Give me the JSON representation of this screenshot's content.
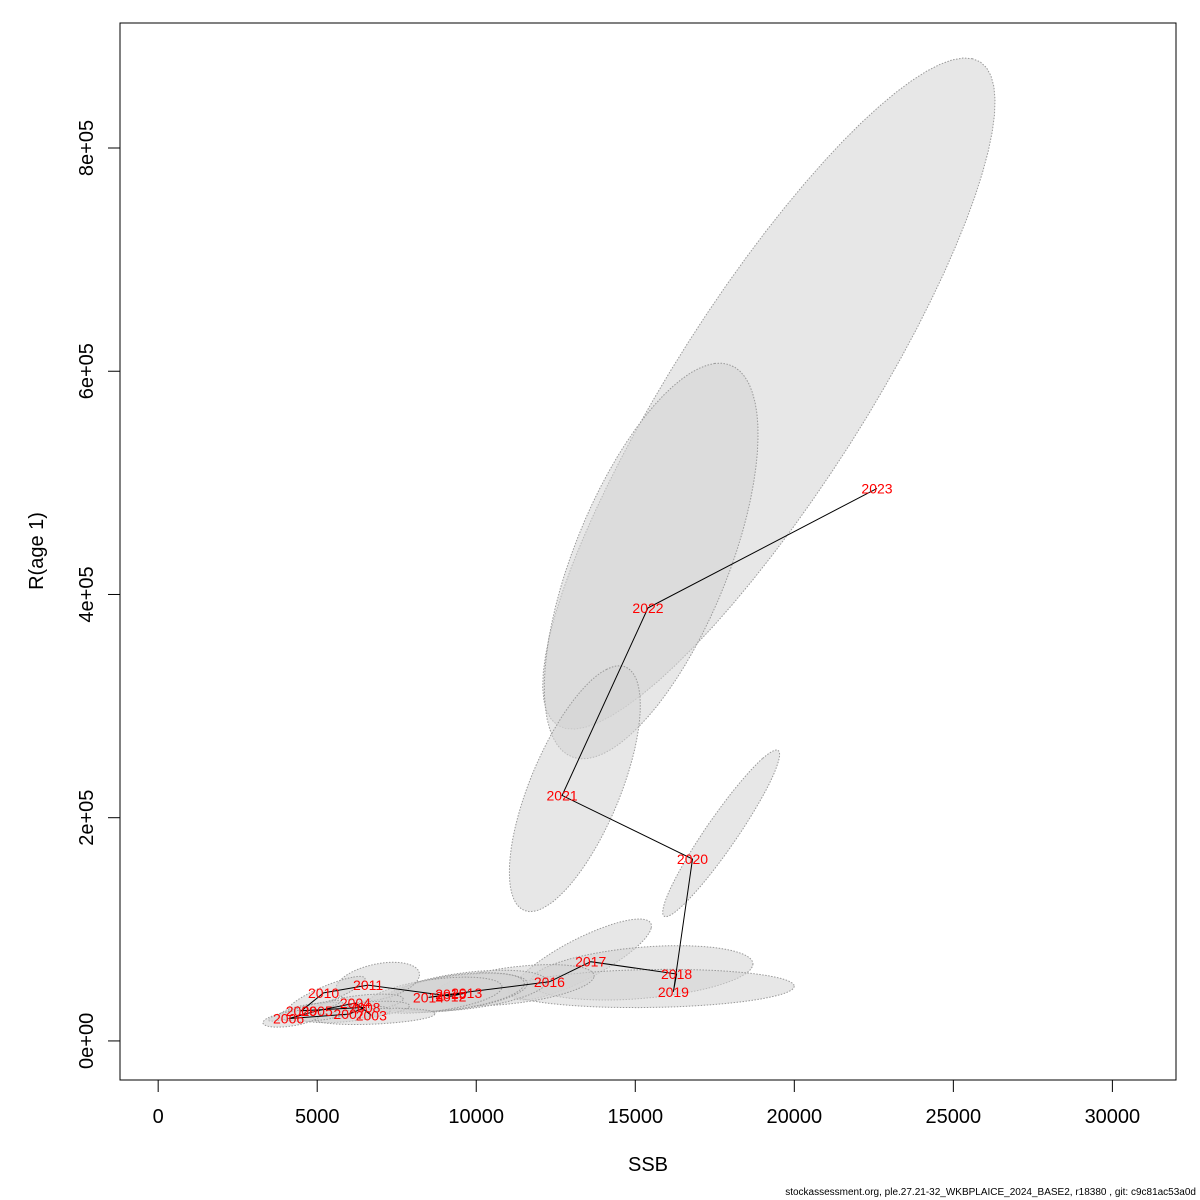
{
  "chart_data": {
    "type": "scatter",
    "title": "",
    "xlabel": "SSB",
    "ylabel": "R(age 1)",
    "xlim": [
      -1200,
      32000
    ],
    "ylim": [
      -35000,
      912000
    ],
    "x_ticks": [
      {
        "value": 0,
        "label": "0"
      },
      {
        "value": 5000,
        "label": "5000"
      },
      {
        "value": 10000,
        "label": "10000"
      },
      {
        "value": 15000,
        "label": "15000"
      },
      {
        "value": 20000,
        "label": "20000"
      },
      {
        "value": 25000,
        "label": "25000"
      },
      {
        "value": 30000,
        "label": "30000"
      }
    ],
    "y_ticks": [
      {
        "value": 0,
        "label": "0e+00"
      },
      {
        "value": 200000,
        "label": "2e+05"
      },
      {
        "value": 400000,
        "label": "4e+05"
      },
      {
        "value": 600000,
        "label": "6e+05"
      },
      {
        "value": 800000,
        "label": "8e+05"
      }
    ],
    "grid": false,
    "point_color": "#ff0000",
    "line_color": "#000000",
    "ellipse_fill": "#d3d3d3",
    "ellipse_stroke": "#999999",
    "points": [
      {
        "year": "2003",
        "ssb": 6700,
        "r": 23000
      },
      {
        "year": "2004",
        "ssb": 6200,
        "r": 34000
      },
      {
        "year": "2005",
        "ssb": 5000,
        "r": 27000
      },
      {
        "year": "2006",
        "ssb": 4100,
        "r": 20000
      },
      {
        "year": "2007",
        "ssb": 6000,
        "r": 24000
      },
      {
        "year": "2008",
        "ssb": 6500,
        "r": 30000
      },
      {
        "year": "2009",
        "ssb": 4500,
        "r": 27000
      },
      {
        "year": "2010",
        "ssb": 5200,
        "r": 43000
      },
      {
        "year": "2011",
        "ssb": 6600,
        "r": 50000
      },
      {
        "year": "2012",
        "ssb": 9200,
        "r": 40000
      },
      {
        "year": "2013",
        "ssb": 9700,
        "r": 43000
      },
      {
        "year": "2014",
        "ssb": 8500,
        "r": 39000
      },
      {
        "year": "2015",
        "ssb": 9200,
        "r": 42000
      },
      {
        "year": "2016",
        "ssb": 12300,
        "r": 53000
      },
      {
        "year": "2017",
        "ssb": 13600,
        "r": 71000
      },
      {
        "year": "2018",
        "ssb": 16300,
        "r": 60000
      },
      {
        "year": "2019",
        "ssb": 16200,
        "r": 44000
      },
      {
        "year": "2020",
        "ssb": 16800,
        "r": 163000
      },
      {
        "year": "2021",
        "ssb": 12700,
        "r": 220000
      },
      {
        "year": "2022",
        "ssb": 15400,
        "r": 388000
      },
      {
        "year": "2023",
        "ssb": 22600,
        "r": 495000
      }
    ],
    "ellipses": [
      {
        "year": "2023",
        "center": [
          19200,
          580000
        ],
        "major_axis_end": [
          25600,
          880000
        ],
        "minor_axis_end": [
          16100,
          600000
        ]
      },
      {
        "year": "2022",
        "center": [
          15500,
          430000
        ],
        "major_axis_end": [
          17500,
          607000
        ],
        "minor_axis_end": [
          12800,
          420000
        ]
      },
      {
        "year": "2021",
        "center": [
          13100,
          226000
        ],
        "major_axis_end": [
          14100,
          333000
        ],
        "minor_axis_end": [
          11300,
          200000
        ]
      },
      {
        "year": "2020",
        "center": [
          17700,
          186000
        ],
        "major_axis_end": [
          19000,
          253000
        ],
        "minor_axis_end": [
          16400,
          153000
        ]
      },
      {
        "year": "2017",
        "center": [
          13300,
          73000
        ],
        "major_axis_end": [
          15500,
          101000
        ],
        "minor_axis_end": [
          13100,
          50000
        ]
      },
      {
        "year": "2018",
        "center": [
          15200,
          61000
        ],
        "major_axis_end": [
          18700,
          69000
        ],
        "minor_axis_end": [
          15200,
          38000
        ]
      },
      {
        "year": "2019",
        "center": [
          15500,
          47000
        ],
        "major_axis_end": [
          20000,
          49000
        ],
        "minor_axis_end": [
          15500,
          30000
        ]
      },
      {
        "year": "2016",
        "center": [
          11200,
          50000
        ],
        "major_axis_end": [
          13700,
          57000
        ],
        "minor_axis_end": [
          11000,
          33000
        ]
      },
      {
        "year": "2013",
        "center": [
          9700,
          45000
        ],
        "major_axis_end": [
          12200,
          52000
        ],
        "minor_axis_end": [
          9500,
          28000
        ]
      },
      {
        "year": "2012",
        "center": [
          9300,
          43000
        ],
        "major_axis_end": [
          11600,
          50000
        ],
        "minor_axis_end": [
          9100,
          27000
        ]
      },
      {
        "year": "2015",
        "center": [
          9400,
          44000
        ],
        "major_axis_end": [
          11500,
          50000
        ],
        "minor_axis_end": [
          9200,
          28000
        ]
      },
      {
        "year": "2014",
        "center": [
          8700,
          41000
        ],
        "major_axis_end": [
          10800,
          47000
        ],
        "minor_axis_end": [
          8500,
          26000
        ]
      },
      {
        "year": "2011",
        "center": [
          6900,
          53000
        ],
        "major_axis_end": [
          8200,
          57000
        ],
        "minor_axis_end": [
          6700,
          36000
        ]
      },
      {
        "year": "2010",
        "center": [
          5300,
          42000
        ],
        "major_axis_end": [
          6100,
          57000
        ],
        "minor_axis_end": [
          4400,
          37000
        ]
      },
      {
        "year": "2004",
        "center": [
          6300,
          33000
        ],
        "major_axis_end": [
          7700,
          37000
        ],
        "minor_axis_end": [
          6200,
          25000
        ]
      },
      {
        "year": "2008",
        "center": [
          6500,
          28000
        ],
        "major_axis_end": [
          7900,
          31000
        ],
        "minor_axis_end": [
          6400,
          21000
        ]
      },
      {
        "year": "2007",
        "center": [
          5900,
          24000
        ],
        "major_axis_end": [
          7300,
          27000
        ],
        "minor_axis_end": [
          5800,
          17000
        ]
      },
      {
        "year": "2003",
        "center": [
          6800,
          22000
        ],
        "major_axis_end": [
          8700,
          24000
        ],
        "minor_axis_end": [
          6700,
          15000
        ]
      },
      {
        "year": "2005",
        "center": [
          5000,
          26000
        ],
        "major_axis_end": [
          6200,
          29000
        ],
        "minor_axis_end": [
          4900,
          18000
        ]
      },
      {
        "year": "2009",
        "center": [
          4600,
          27000
        ],
        "major_axis_end": [
          5500,
          36000
        ],
        "minor_axis_end": [
          3900,
          25000
        ]
      },
      {
        "year": "2006",
        "center": [
          4200,
          20000
        ],
        "major_axis_end": [
          5100,
          23000
        ],
        "minor_axis_end": [
          4100,
          13000
        ]
      }
    ]
  },
  "footer": {
    "credit": "stockassessment.org, ple.27.21-32_WKBPLAICE_2024_BASE2, r18380 , git: c9c81ac53a0d"
  }
}
